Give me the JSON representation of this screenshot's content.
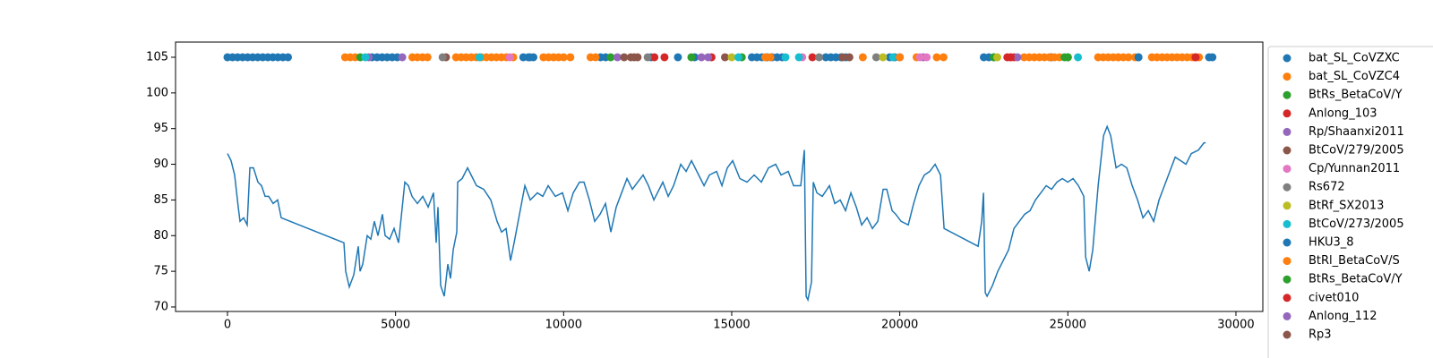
{
  "chart_data": {
    "type": "line",
    "color": "#1f77b4",
    "xlim": [
      -1545,
      30800
    ],
    "ylim": [
      69.37,
      107.13
    ],
    "xticks": [
      0,
      5000,
      10000,
      15000,
      20000,
      25000,
      30000
    ],
    "yticks": [
      70,
      75,
      80,
      85,
      90,
      95,
      100,
      105
    ],
    "x": [
      0,
      107,
      213,
      320,
      373,
      480,
      586,
      666,
      773,
      906,
      1013,
      1119,
      1226,
      1359,
      1492,
      1599,
      3464,
      3517,
      3624,
      3757,
      3891,
      3944,
      4024,
      4157,
      4264,
      4370,
      4477,
      4610,
      4690,
      4823,
      4956,
      5090,
      5276,
      5383,
      5490,
      5650,
      5810,
      5970,
      6129,
      6209,
      6262,
      6342,
      6449,
      6555,
      6635,
      6715,
      6822,
      6848,
      6982,
      7142,
      7248,
      7408,
      7621,
      7834,
      8021,
      8154,
      8287,
      8421,
      8527,
      8687,
      8847,
      9007,
      9220,
      9380,
      9540,
      9753,
      9966,
      10126,
      10286,
      10472,
      10606,
      10766,
      10925,
      11085,
      11245,
      11405,
      11565,
      11725,
      11885,
      12045,
      12205,
      12364,
      12524,
      12684,
      12951,
      13111,
      13271,
      13484,
      13644,
      13804,
      14017,
      14177,
      14336,
      14549,
      14709,
      14869,
      15029,
      15242,
      15456,
      15669,
      15882,
      16095,
      16308,
      16468,
      16681,
      16841,
      17054,
      17161,
      17214,
      17267,
      17374,
      17427,
      17534,
      17694,
      17907,
      18067,
      18227,
      18386,
      18546,
      18706,
      18866,
      19026,
      19186,
      19346,
      19506,
      19612,
      19772,
      19879,
      20039,
      20252,
      20412,
      20572,
      20732,
      20892,
      21051,
      21211,
      21318,
      22330,
      22437,
      22490,
      22543,
      22597,
      22757,
      22916,
      23076,
      23236,
      23396,
      23556,
      23716,
      23876,
      24036,
      24196,
      24356,
      24516,
      24676,
      24836,
      24996,
      25155,
      25315,
      25475,
      25528,
      25635,
      25741,
      25901,
      26061,
      26168,
      26274,
      26434,
      26594,
      26754,
      26914,
      27074,
      27234,
      27393,
      27553,
      27713,
      27873,
      28033,
      28193,
      28353,
      28513,
      28673,
      28886,
      29046,
      29099
    ],
    "values": [
      91.5,
      90.5,
      88.5,
      84,
      82,
      82.5,
      81.5,
      89.5,
      89.5,
      87.5,
      87,
      85.5,
      85.5,
      84.5,
      85,
      82.5,
      79,
      75,
      72.8,
      74.5,
      78.5,
      75,
      76,
      80,
      79.5,
      82,
      80,
      83,
      80,
      79.5,
      81,
      79,
      87.5,
      87,
      85.5,
      84.5,
      85.5,
      84,
      86,
      79,
      84,
      73,
      71.5,
      76,
      74,
      78,
      80.5,
      87.5,
      88,
      89.5,
      88.5,
      87,
      86.5,
      85,
      82,
      80.5,
      81,
      76.5,
      79,
      83,
      87,
      85,
      86,
      85.5,
      87,
      85.5,
      86,
      83.5,
      86,
      87.5,
      87.5,
      85,
      82,
      83,
      84.5,
      80.5,
      84,
      86,
      88,
      86.5,
      87.5,
      88.5,
      87,
      85,
      87.5,
      85.5,
      87,
      90,
      89,
      90.5,
      88.5,
      87,
      88.5,
      89,
      87,
      89.5,
      90.5,
      88,
      87.5,
      88.5,
      87.5,
      89.5,
      90,
      88.5,
      89,
      87,
      87,
      92,
      71.5,
      71,
      73.5,
      87.5,
      86,
      85.5,
      87,
      84.5,
      85,
      83.5,
      86,
      84,
      81.5,
      82.5,
      81,
      82,
      86.5,
      86.5,
      83.5,
      83,
      82,
      81.5,
      84.5,
      87,
      88.5,
      89,
      90,
      88.5,
      81,
      78.5,
      82,
      86,
      72,
      71.5,
      73,
      75,
      76.5,
      78,
      81,
      82,
      83,
      83.5,
      85,
      86,
      87,
      86.5,
      87.5,
      88,
      87.5,
      88,
      87,
      85.5,
      77,
      75,
      78,
      87,
      94,
      95.3,
      94,
      89.5,
      90,
      89.5,
      87,
      85,
      82.5,
      83.5,
      82,
      85,
      87,
      89,
      91,
      90.5,
      90,
      91.5,
      92,
      93,
      93
    ],
    "points": {
      "type": "scatter",
      "series": [
        {
          "name": "bat_SL_CoVZXC",
          "color": "#1f77b4",
          "x": [
            0,
            150,
            300,
            450,
            600,
            750,
            900,
            1050,
            1200,
            1350,
            1500,
            1650,
            1800,
            4300,
            4450,
            4600,
            4750,
            4900,
            5050,
            8800,
            8950,
            9100,
            11100,
            11250,
            12600,
            13900,
            15600,
            15750,
            15900,
            16050,
            16200,
            16350,
            16500,
            17800,
            17950,
            18100,
            18250,
            18400,
            19700,
            19850,
            20000,
            22500,
            22650,
            22800,
            24500,
            27100,
            29200,
            29300
          ],
          "values": [
            105,
            105,
            105,
            105,
            105,
            105,
            105,
            105,
            105,
            105,
            105,
            105,
            105,
            105,
            105,
            105,
            105,
            105,
            105,
            105,
            105,
            105,
            105,
            105,
            105,
            105,
            105,
            105,
            105,
            105,
            105,
            105,
            105,
            105,
            105,
            105,
            105,
            105,
            105,
            105,
            105,
            105,
            105,
            105,
            105,
            105,
            105,
            105
          ]
        },
        {
          "name": "bat_SL_CoVZC4",
          "color": "#ff7f0e",
          "x": [
            3500,
            3650,
            3800,
            5500,
            5650,
            5800,
            5950,
            6800,
            6950,
            7100,
            7250,
            7400,
            7550,
            7700,
            7850,
            8000,
            8150,
            8300,
            8500,
            9400,
            9550,
            9700,
            9850,
            10000,
            10200,
            10800,
            10950,
            16000,
            16150,
            18900,
            20500,
            21100,
            21300,
            23700,
            23850,
            24000,
            24150,
            24300,
            24450,
            24600,
            24750,
            25900,
            26050,
            26200,
            26350,
            26500,
            26650,
            26800,
            27000,
            27500,
            27650,
            27800,
            27950,
            28100,
            28250,
            28400,
            28550,
            28700,
            28900
          ],
          "values": [
            105,
            105,
            105,
            105,
            105,
            105,
            105,
            105,
            105,
            105,
            105,
            105,
            105,
            105,
            105,
            105,
            105,
            105,
            105,
            105,
            105,
            105,
            105,
            105,
            105,
            105,
            105,
            105,
            105,
            105,
            105,
            105,
            105,
            105,
            105,
            105,
            105,
            105,
            105,
            105,
            105,
            105,
            105,
            105,
            105,
            105,
            105,
            105,
            105,
            105,
            105,
            105,
            105,
            105,
            105,
            105,
            105,
            105,
            105
          ]
        },
        {
          "name": "BtRs_BetaCoV/Y",
          "color": "#2ca02c",
          "x": [
            3950,
            11400,
            13800,
            15300,
            22800,
            24900,
            25000
          ],
          "values": [
            105,
            105,
            105,
            105,
            105,
            105,
            105
          ]
        },
        {
          "name": "Anlong_103",
          "color": "#d62728",
          "x": [
            12700,
            13000,
            14400,
            17400,
            23200,
            23300,
            23400,
            28800
          ],
          "values": [
            105,
            105,
            105,
            105,
            105,
            105,
            105,
            105
          ]
        },
        {
          "name": "Rp/Shaanxi2011",
          "color": "#9467bd",
          "x": [
            4200,
            5200,
            11600,
            14100,
            20700,
            23500
          ],
          "values": [
            105,
            105,
            105,
            105,
            105,
            105
          ]
        },
        {
          "name": "BtCoV/279/2005",
          "color": "#8c564b",
          "x": [
            6500,
            11800,
            12000,
            12200,
            14800,
            18300,
            18500
          ],
          "values": [
            105,
            105,
            105,
            105,
            105,
            105,
            105
          ]
        },
        {
          "name": "Cp/Yunnan2011",
          "color": "#e377c2",
          "x": [
            8400,
            17100,
            20600,
            20800
          ],
          "values": [
            105,
            105,
            105,
            105
          ]
        },
        {
          "name": "Rs672",
          "color": "#7f7f7f",
          "x": [
            6400,
            12500,
            17600,
            19300
          ],
          "values": [
            105,
            105,
            105,
            105
          ]
        },
        {
          "name": "BtRf_SX2013",
          "color": "#bcbd22",
          "x": [
            15000,
            19500,
            22900
          ],
          "values": [
            105,
            105,
            105
          ]
        },
        {
          "name": "BtCoV/273/2005",
          "color": "#17becf",
          "x": [
            4100,
            7500,
            15200,
            16600,
            17000,
            19800,
            25300
          ],
          "values": [
            105,
            105,
            105,
            105,
            105,
            105,
            105
          ]
        },
        {
          "name": "HKU3_8",
          "color": "#1f77b4",
          "x": [
            9000,
            13400,
            27100
          ],
          "values": [
            105,
            105,
            105
          ]
        },
        {
          "name": "BtRl_BetaCoV/S",
          "color": "#ff7f0e",
          "x": [
            20000,
            26500
          ],
          "values": [
            105,
            105
          ]
        },
        {
          "name": "BtRs_BetaCoV/Y",
          "color": "#2ca02c",
          "x": [
            25000
          ],
          "values": [
            105
          ]
        },
        {
          "name": "civet010",
          "color": "#d62728",
          "x": [
            23300,
            28800
          ],
          "values": [
            105,
            105
          ]
        },
        {
          "name": "Anlong_112",
          "color": "#9467bd",
          "x": [
            14300
          ],
          "values": [
            105
          ]
        },
        {
          "name": "Rp3",
          "color": "#8c564b",
          "x": [
            12100
          ],
          "values": [
            105
          ]
        }
      ]
    }
  }
}
